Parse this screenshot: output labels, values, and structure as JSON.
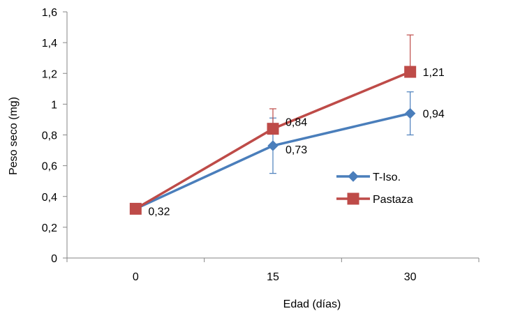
{
  "chart_data": {
    "type": "line",
    "xlabel": "Edad (días)",
    "ylabel": "Peso seco (mg)",
    "categories": [
      "0",
      "15",
      "30"
    ],
    "ylim": [
      0,
      1.6
    ],
    "yticks": [
      "0",
      "0,2",
      "0,4",
      "0,6",
      "0,8",
      "1",
      "1,2",
      "1,4",
      "1,6"
    ],
    "grid": false,
    "legend_position": "center-right",
    "series": [
      {
        "name": "T-Iso.",
        "color": "#4A7EBB",
        "marker": "diamond",
        "values": [
          0.32,
          0.73,
          0.94
        ],
        "error_low": [
          0.32,
          0.55,
          0.8
        ],
        "error_high": [
          0.32,
          0.91,
          1.08
        ],
        "labels": [
          "0,32",
          "0,73",
          "0,94"
        ]
      },
      {
        "name": "Pastaza",
        "color": "#BE4B48",
        "marker": "square",
        "values": [
          0.32,
          0.84,
          1.21
        ],
        "error_low": [
          0.32,
          0.84,
          1.21
        ],
        "error_high": [
          0.32,
          0.97,
          1.45
        ],
        "labels": [
          "0,32",
          "0,84",
          "1,21"
        ]
      }
    ]
  }
}
